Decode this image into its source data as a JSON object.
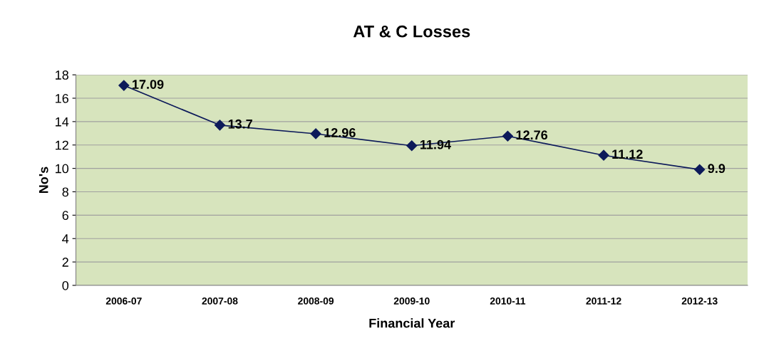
{
  "chart_data": {
    "type": "line",
    "title": "AT & C Losses",
    "xlabel": "Financial Year",
    "ylabel": "No's",
    "categories": [
      "2006-07",
      "2007-08",
      "2008-09",
      "2009-10",
      "2010-11",
      "2011-12",
      "2012-13"
    ],
    "series": [
      {
        "color": "#0d1a5a",
        "values": [
          17.09,
          13.7,
          12.96,
          11.94,
          12.76,
          11.12,
          9.9
        ]
      }
    ],
    "ylim": [
      0,
      18
    ],
    "yticks": [
      0,
      2,
      4,
      6,
      8,
      10,
      12,
      14,
      16,
      18
    ],
    "grid": "y",
    "marker": "diamond",
    "line_style": "solid",
    "data_labels": true,
    "legend": false
  }
}
